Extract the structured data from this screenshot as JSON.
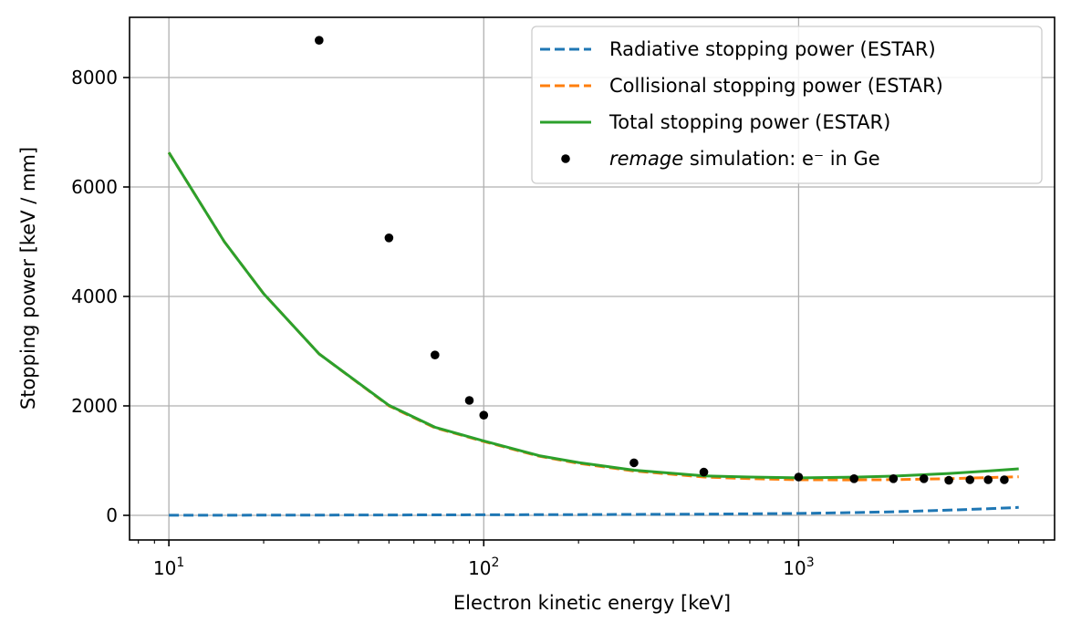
{
  "chart_data": {
    "type": "line",
    "xlabel": "Electron kinetic energy [keV]",
    "ylabel": "Stopping power [keV / mm]",
    "xscale": "log",
    "xlim": [
      7.5,
      6500
    ],
    "ylim": [
      -450,
      9100
    ],
    "grid": true,
    "legend_position": "top-right",
    "x_ticks": [
      {
        "base": "10",
        "exp": "1",
        "value": 10
      },
      {
        "base": "10",
        "exp": "2",
        "value": 100
      },
      {
        "base": "10",
        "exp": "3",
        "value": 1000
      }
    ],
    "y_ticks": [
      {
        "label": "0",
        "value": 0
      },
      {
        "label": "2000",
        "value": 2000
      },
      {
        "label": "4000",
        "value": 4000
      },
      {
        "label": "6000",
        "value": 6000
      },
      {
        "label": "8000",
        "value": 8000
      }
    ],
    "series": [
      {
        "name": "Radiative stopping power (ESTAR)",
        "style": "dashed",
        "color": "#1f77b4",
        "x": [
          10,
          20,
          50,
          100,
          200,
          500,
          1000,
          1500,
          2000,
          3000,
          4000,
          5000
        ],
        "y": [
          2,
          4,
          7,
          10,
          14,
          22,
          35,
          50,
          65,
          95,
          120,
          145
        ]
      },
      {
        "name": "Collisional stopping power (ESTAR)",
        "style": "dashed",
        "color": "#ff7f0e",
        "x": [
          10,
          15,
          20,
          30,
          50,
          70,
          100,
          150,
          200,
          300,
          500,
          700,
          1000,
          1500,
          2000,
          3000,
          4000,
          5000
        ],
        "y": [
          6630,
          5000,
          4050,
          2950,
          2000,
          1600,
          1350,
          1080,
          950,
          810,
          700,
          670,
          650,
          648,
          652,
          670,
          690,
          705
        ]
      },
      {
        "name": "Total stopping power (ESTAR)",
        "style": "solid",
        "color": "#2ca02c",
        "x": [
          10,
          15,
          20,
          30,
          50,
          70,
          100,
          150,
          200,
          300,
          500,
          700,
          1000,
          1500,
          2000,
          3000,
          4000,
          5000
        ],
        "y": [
          6630,
          5000,
          4050,
          2950,
          2010,
          1610,
          1360,
          1090,
          965,
          825,
          722,
          700,
          685,
          698,
          717,
          765,
          810,
          850
        ]
      },
      {
        "name": "simulation: e⁻ in Ge",
        "name_italic_prefix": "remage",
        "style": "markers",
        "color": "#000000",
        "x": [
          30,
          50,
          70,
          90,
          100,
          300,
          500,
          1000,
          1500,
          2000,
          2500,
          3000,
          3500,
          4000,
          4500
        ],
        "y": [
          8680,
          5070,
          2930,
          2100,
          1830,
          960,
          790,
          700,
          670,
          670,
          670,
          640,
          650,
          650,
          650
        ]
      }
    ]
  }
}
